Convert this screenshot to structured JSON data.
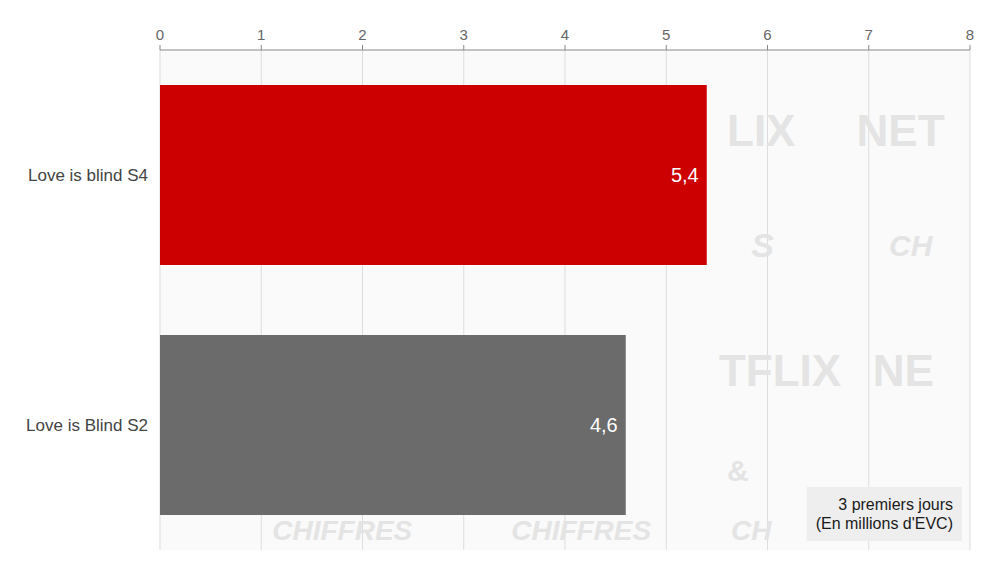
{
  "chart_data": {
    "type": "bar",
    "orientation": "horizontal",
    "categories": [
      "Love is blind S4",
      "Love is Blind S2"
    ],
    "values": [
      5.4,
      4.6
    ],
    "value_labels": [
      "5,4",
      "4,6"
    ],
    "data_labels": true,
    "colors": [
      "#cc0000",
      "#6b6b6b"
    ],
    "xlim": [
      0,
      8
    ],
    "xticks": [
      0,
      1,
      2,
      3,
      4,
      5,
      6,
      7,
      8
    ],
    "grid": true,
    "annotation": "3 premiers jours\n(En millions d'EVC)",
    "watermarks": [
      "LIX",
      "S",
      "NET",
      "CH",
      "TFLIX",
      "&",
      "CHIFFRES",
      "CHIFFRES",
      "CH",
      "NE"
    ]
  }
}
